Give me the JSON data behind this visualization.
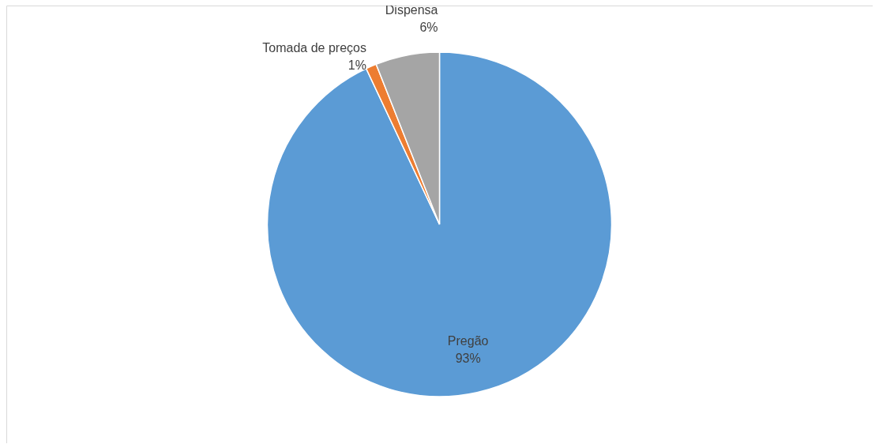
{
  "chart_data": {
    "type": "pie",
    "categories": [
      "Pregão",
      "Tomada de preços",
      "Dispensa"
    ],
    "values": [
      93,
      1,
      6
    ],
    "value_labels": [
      "93%",
      "1%",
      "6%"
    ],
    "colors": [
      "#5b9bd5",
      "#ed7d31",
      "#a5a5a5"
    ]
  }
}
